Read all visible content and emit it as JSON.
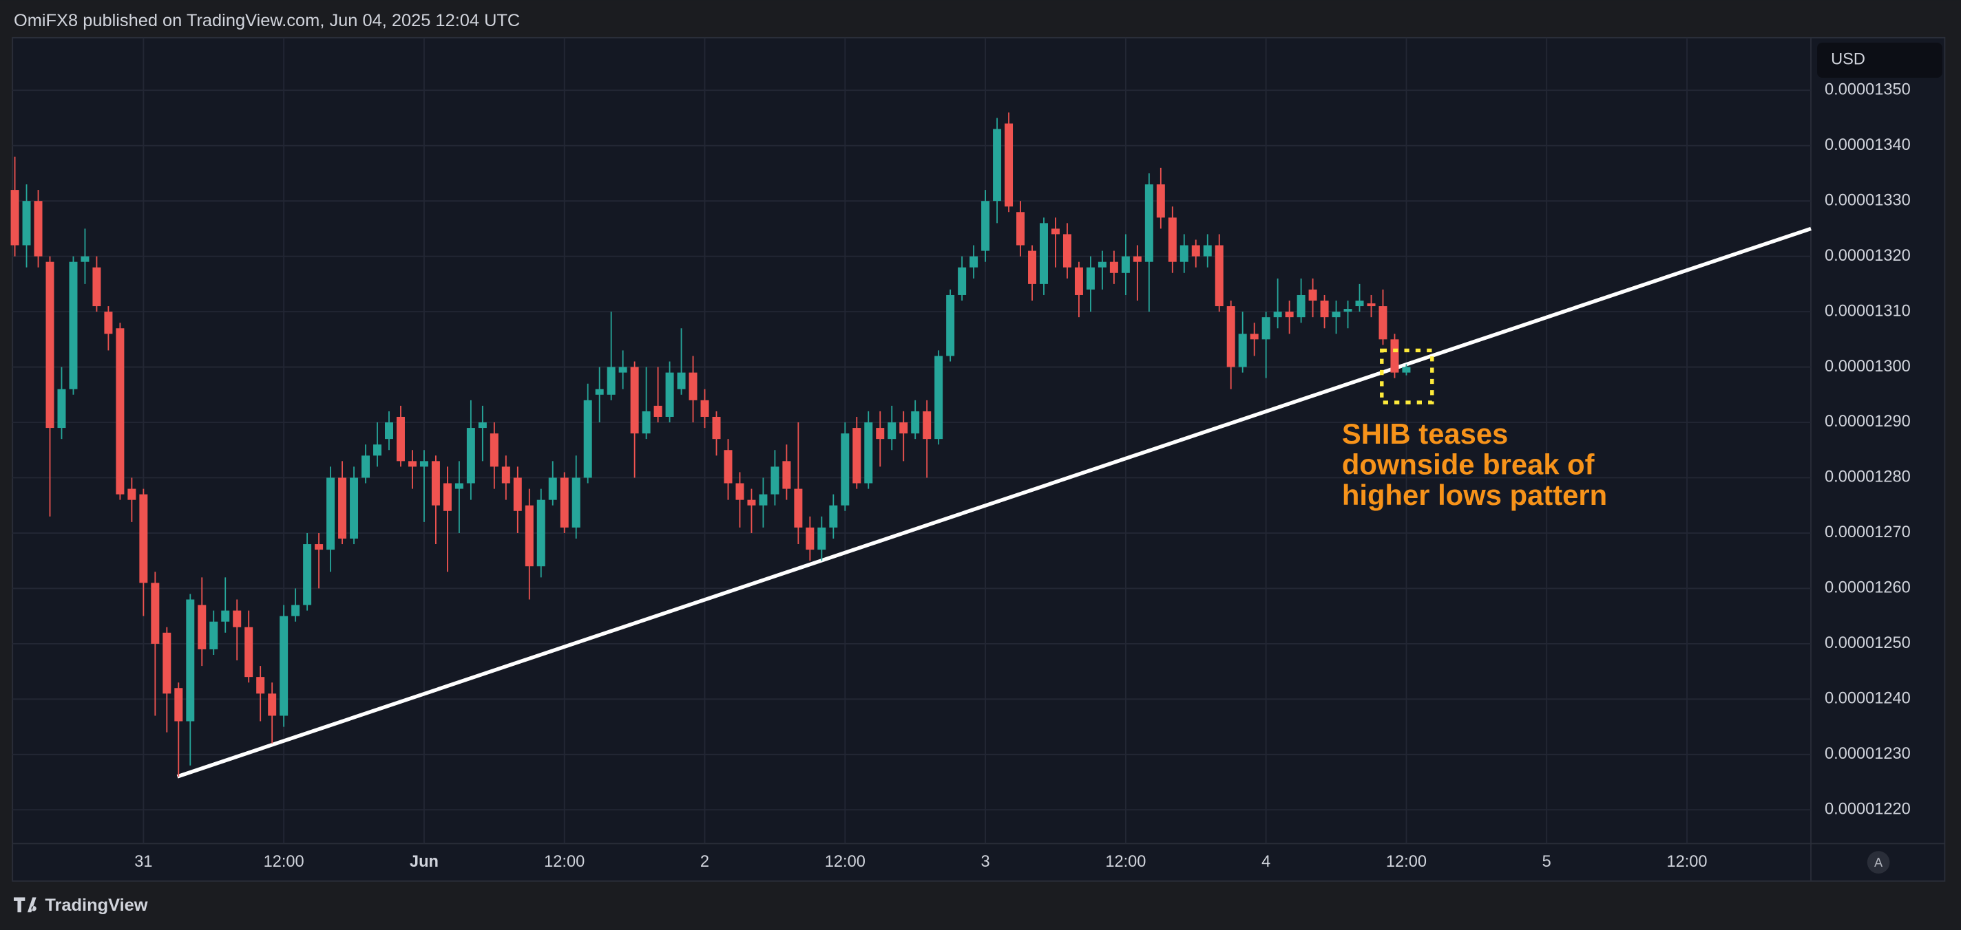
{
  "header": {
    "text": "OmiFX8 published on TradingView.com, Jun 04, 2025 12:04 UTC"
  },
  "footer": {
    "brand": "TradingView",
    "auto_button": "A"
  },
  "chart_data": {
    "type": "candlestick",
    "currency": "USD",
    "up_color": "#26a69a",
    "down_color": "#ef5350",
    "grid": true,
    "x": [
      -11,
      -10,
      -9,
      -8,
      -7,
      -6,
      -5,
      -4,
      -3,
      -2,
      -1,
      0,
      1,
      2,
      3,
      4,
      5,
      6,
      7,
      8,
      9,
      10,
      11,
      12,
      13,
      14,
      15,
      16,
      17,
      18,
      19,
      20,
      21,
      22,
      23,
      24,
      25,
      26,
      27,
      28,
      29,
      30,
      31,
      32,
      33,
      34,
      35,
      36,
      37,
      38,
      39,
      40,
      41,
      42,
      43,
      44,
      45,
      46,
      47,
      48,
      49,
      50,
      51,
      52,
      53,
      54,
      55,
      56,
      57,
      58,
      59,
      60,
      61,
      62,
      63,
      64,
      65,
      66,
      67,
      68,
      69,
      70,
      71,
      72,
      73,
      74,
      75,
      76,
      77,
      78,
      79,
      80,
      81,
      82,
      83,
      84,
      85,
      86,
      87,
      88,
      89,
      90,
      91,
      92,
      93,
      94,
      95,
      96,
      97,
      98,
      99,
      100,
      101,
      102,
      103,
      104,
      105,
      106,
      107,
      108
    ],
    "open": [
      1.332e-05,
      1.322e-05,
      1.33e-05,
      1.319e-05,
      1.289e-05,
      1.296e-05,
      1.319e-05,
      1.318e-05,
      1.31e-05,
      1.307e-05,
      1.278e-05,
      1.277e-05,
      1.261e-05,
      1.252e-05,
      1.242e-05,
      1.236e-05,
      1.257e-05,
      1.249e-05,
      1.254e-05,
      1.256e-05,
      1.253e-05,
      1.244e-05,
      1.241e-05,
      1.237e-05,
      1.255e-05,
      1.257e-05,
      1.268e-05,
      1.267e-05,
      1.28e-05,
      1.269e-05,
      1.28e-05,
      1.284e-05,
      1.287e-05,
      1.291e-05,
      1.283e-05,
      1.282e-05,
      1.283e-05,
      1.279e-05,
      1.278e-05,
      1.279e-05,
      1.289e-05,
      1.288e-05,
      1.282e-05,
      1.28e-05,
      1.275e-05,
      1.264e-05,
      1.276e-05,
      1.28e-05,
      1.271e-05,
      1.28e-05,
      1.295e-05,
      1.295e-05,
      1.299e-05,
      1.3e-05,
      1.288e-05,
      1.293e-05,
      1.291e-05,
      1.296e-05,
      1.299e-05,
      1.294e-05,
      1.291e-05,
      1.285e-05,
      1.279e-05,
      1.276e-05,
      1.275e-05,
      1.277e-05,
      1.283e-05,
      1.278e-05,
      1.271e-05,
      1.267e-05,
      1.271e-05,
      1.275e-05,
      1.289e-05,
      1.279e-05,
      1.289e-05,
      1.287e-05,
      1.29e-05,
      1.288e-05,
      1.292e-05,
      1.287e-05,
      1.302e-05,
      1.313e-05,
      1.318e-05,
      1.321e-05,
      1.33e-05,
      1.344e-05,
      1.328e-05,
      1.321e-05,
      1.315e-05,
      1.325e-05,
      1.324e-05,
      1.318e-05,
      1.314e-05,
      1.318e-05,
      1.319e-05,
      1.317e-05,
      1.32e-05,
      1.319e-05,
      1.333e-05,
      1.327e-05,
      1.319e-05,
      1.322e-05,
      1.32e-05,
      1.322e-05,
      1.311e-05,
      1.3e-05,
      1.306e-05,
      1.305e-05,
      1.309e-05,
      1.31e-05,
      1.309e-05,
      1.314e-05,
      1.312e-05,
      1.309e-05,
      1.31e-05,
      1.311e-05,
      1.3115e-05,
      1.311e-05,
      1.305e-05,
      1.299e-05
    ],
    "high": [
      1.338e-05,
      1.333e-05,
      1.332e-05,
      1.32e-05,
      1.3e-05,
      1.32e-05,
      1.325e-05,
      1.32e-05,
      1.311e-05,
      1.308e-05,
      1.28e-05,
      1.278e-05,
      1.263e-05,
      1.253e-05,
      1.243e-05,
      1.259e-05,
      1.262e-05,
      1.256e-05,
      1.262e-05,
      1.258e-05,
      1.256e-05,
      1.246e-05,
      1.243e-05,
      1.257e-05,
      1.26e-05,
      1.27e-05,
      1.27e-05,
      1.282e-05,
      1.283e-05,
      1.282e-05,
      1.286e-05,
      1.29e-05,
      1.292e-05,
      1.293e-05,
      1.285e-05,
      1.285e-05,
      1.284e-05,
      1.282e-05,
      1.283e-05,
      1.294e-05,
      1.293e-05,
      1.29e-05,
      1.284e-05,
      1.282e-05,
      1.278e-05,
      1.278e-05,
      1.283e-05,
      1.281e-05,
      1.284e-05,
      1.297e-05,
      1.3e-05,
      1.31e-05,
      1.303e-05,
      1.301e-05,
      1.3e-05,
      1.3e-05,
      1.301e-05,
      1.307e-05,
      1.302e-05,
      1.296e-05,
      1.292e-05,
      1.287e-05,
      1.281e-05,
      1.278e-05,
      1.28e-05,
      1.285e-05,
      1.286e-05,
      1.29e-05,
      1.273e-05,
      1.273e-05,
      1.277e-05,
      1.29e-05,
      1.291e-05,
      1.292e-05,
      1.292e-05,
      1.293e-05,
      1.292e-05,
      1.294e-05,
      1.294e-05,
      1.303e-05,
      1.314e-05,
      1.32e-05,
      1.322e-05,
      1.332e-05,
      1.345e-05,
      1.346e-05,
      1.33e-05,
      1.322e-05,
      1.327e-05,
      1.327e-05,
      1.326e-05,
      1.319e-05,
      1.32e-05,
      1.321e-05,
      1.321e-05,
      1.324e-05,
      1.322e-05,
      1.335e-05,
      1.336e-05,
      1.329e-05,
      1.324e-05,
      1.323e-05,
      1.324e-05,
      1.324e-05,
      1.312e-05,
      1.31e-05,
      1.308e-05,
      1.31e-05,
      1.316e-05,
      1.312e-05,
      1.316e-05,
      1.316e-05,
      1.313e-05,
      1.312e-05,
      1.312e-05,
      1.315e-05,
      1.313e-05,
      1.314e-05,
      1.306e-05,
      1.3005e-05
    ],
    "low": [
      1.32e-05,
      1.318e-05,
      1.318e-05,
      1.273e-05,
      1.287e-05,
      1.295e-05,
      1.315e-05,
      1.31e-05,
      1.303e-05,
      1.276e-05,
      1.272e-05,
      1.255e-05,
      1.237e-05,
      1.234e-05,
      1.226e-05,
      1.228e-05,
      1.246e-05,
      1.248e-05,
      1.252e-05,
      1.247e-05,
      1.243e-05,
      1.236e-05,
      1.232e-05,
      1.235e-05,
      1.254e-05,
      1.256e-05,
      1.26e-05,
      1.263e-05,
      1.268e-05,
      1.268e-05,
      1.279e-05,
      1.282e-05,
      1.285e-05,
      1.282e-05,
      1.278e-05,
      1.272e-05,
      1.268e-05,
      1.263e-05,
      1.27e-05,
      1.276e-05,
      1.283e-05,
      1.278e-05,
      1.276e-05,
      1.27e-05,
      1.258e-05,
      1.262e-05,
      1.275e-05,
      1.27e-05,
      1.269e-05,
      1.279e-05,
      1.29e-05,
      1.294e-05,
      1.296e-05,
      1.28e-05,
      1.287e-05,
      1.29e-05,
      1.29e-05,
      1.295e-05,
      1.29e-05,
      1.289e-05,
      1.284e-05,
      1.276e-05,
      1.271e-05,
      1.27e-05,
      1.271e-05,
      1.275e-05,
      1.276e-05,
      1.268e-05,
      1.265e-05,
      1.265e-05,
      1.269e-05,
      1.274e-05,
      1.278e-05,
      1.278e-05,
      1.282e-05,
      1.285e-05,
      1.283e-05,
      1.287e-05,
      1.28e-05,
      1.286e-05,
      1.301e-05,
      1.312e-05,
      1.316e-05,
      1.319e-05,
      1.326e-05,
      1.328e-05,
      1.32e-05,
      1.312e-05,
      1.313e-05,
      1.318e-05,
      1.316e-05,
      1.309e-05,
      1.31e-05,
      1.314e-05,
      1.315e-05,
      1.313e-05,
      1.312e-05,
      1.31e-05,
      1.325e-05,
      1.317e-05,
      1.317e-05,
      1.318e-05,
      1.318e-05,
      1.31e-05,
      1.296e-05,
      1.299e-05,
      1.302e-05,
      1.298e-05,
      1.307e-05,
      1.306e-05,
      1.308e-05,
      1.309e-05,
      1.307e-05,
      1.306e-05,
      1.307e-05,
      1.31e-05,
      1.309e-05,
      1.304e-05,
      1.298e-05,
      1.2985e-05
    ],
    "close": [
      1.322e-05,
      1.33e-05,
      1.32e-05,
      1.289e-05,
      1.296e-05,
      1.319e-05,
      1.32e-05,
      1.311e-05,
      1.306e-05,
      1.277e-05,
      1.276e-05,
      1.261e-05,
      1.25e-05,
      1.241e-05,
      1.236e-05,
      1.258e-05,
      1.249e-05,
      1.254e-05,
      1.256e-05,
      1.253e-05,
      1.244e-05,
      1.241e-05,
      1.237e-05,
      1.255e-05,
      1.257e-05,
      1.268e-05,
      1.267e-05,
      1.28e-05,
      1.269e-05,
      1.28e-05,
      1.284e-05,
      1.286e-05,
      1.29e-05,
      1.283e-05,
      1.282e-05,
      1.283e-05,
      1.275e-05,
      1.274e-05,
      1.279e-05,
      1.289e-05,
      1.29e-05,
      1.282e-05,
      1.279e-05,
      1.274e-05,
      1.264e-05,
      1.276e-05,
      1.28e-05,
      1.271e-05,
      1.28e-05,
      1.294e-05,
      1.296e-05,
      1.3e-05,
      1.3e-05,
      1.288e-05,
      1.292e-05,
      1.291e-05,
      1.299e-05,
      1.299e-05,
      1.294e-05,
      1.291e-05,
      1.287e-05,
      1.279e-05,
      1.276e-05,
      1.275e-05,
      1.277e-05,
      1.282e-05,
      1.278e-05,
      1.271e-05,
      1.267e-05,
      1.271e-05,
      1.275e-05,
      1.288e-05,
      1.279e-05,
      1.29e-05,
      1.287e-05,
      1.29e-05,
      1.288e-05,
      1.292e-05,
      1.287e-05,
      1.302e-05,
      1.313e-05,
      1.318e-05,
      1.32e-05,
      1.33e-05,
      1.343e-05,
      1.329e-05,
      1.322e-05,
      1.315e-05,
      1.326e-05,
      1.324e-05,
      1.318e-05,
      1.313e-05,
      1.318e-05,
      1.319e-05,
      1.317e-05,
      1.32e-05,
      1.319e-05,
      1.333e-05,
      1.327e-05,
      1.319e-05,
      1.322e-05,
      1.32e-05,
      1.322e-05,
      1.311e-05,
      1.3e-05,
      1.306e-05,
      1.305e-05,
      1.309e-05,
      1.31e-05,
      1.309e-05,
      1.313e-05,
      1.312e-05,
      1.309e-05,
      1.31e-05,
      1.3105e-05,
      1.312e-05,
      1.311e-05,
      1.305e-05,
      1.299e-05,
      1.3e-05
    ],
    "xlim": [
      -11.2,
      142.6
    ],
    "xticks": [
      {
        "value": 0,
        "label": "31"
      },
      {
        "value": 12,
        "label": "12:00"
      },
      {
        "value": 24,
        "label": "Jun"
      },
      {
        "value": 36,
        "label": "12:00"
      },
      {
        "value": 48,
        "label": "2"
      },
      {
        "value": 60,
        "label": "12:00"
      },
      {
        "value": 72,
        "label": "3"
      },
      {
        "value": 84,
        "label": "12:00"
      },
      {
        "value": 96,
        "label": "4"
      },
      {
        "value": 108,
        "label": "12:00"
      },
      {
        "value": 120,
        "label": "5"
      },
      {
        "value": 132,
        "label": "12:00"
      }
    ],
    "ylim": [
      1.2139e-05,
      1.3595e-05
    ],
    "yticks": [
      {
        "value": 1.22e-05,
        "label": "0.00001220"
      },
      {
        "value": 1.23e-05,
        "label": "0.00001230"
      },
      {
        "value": 1.24e-05,
        "label": "0.00001240"
      },
      {
        "value": 1.25e-05,
        "label": "0.00001250"
      },
      {
        "value": 1.26e-05,
        "label": "0.00001260"
      },
      {
        "value": 1.27e-05,
        "label": "0.00001270"
      },
      {
        "value": 1.28e-05,
        "label": "0.00001280"
      },
      {
        "value": 1.29e-05,
        "label": "0.00001290"
      },
      {
        "value": 1.3e-05,
        "label": "0.00001300"
      },
      {
        "value": 1.31e-05,
        "label": "0.00001310"
      },
      {
        "value": 1.32e-05,
        "label": "0.00001320"
      },
      {
        "value": 1.33e-05,
        "label": "0.00001330"
      },
      {
        "value": 1.34e-05,
        "label": "0.00001340"
      },
      {
        "value": 1.35e-05,
        "label": "0.00001350"
      }
    ],
    "trendline": {
      "color": "#ffffff",
      "x": [
        2.9,
        142.6
      ],
      "y": [
        1.226e-05,
        1.325e-05
      ]
    },
    "highlight": {
      "color": "#ffeb3b",
      "x": [
        105.9,
        110.2
      ],
      "y": [
        1.303e-05,
        1.2936e-05
      ]
    },
    "annotation": {
      "color": "#f7931a",
      "lines": [
        "SHIB teases",
        "downside break of",
        "higher lows pattern"
      ]
    }
  }
}
